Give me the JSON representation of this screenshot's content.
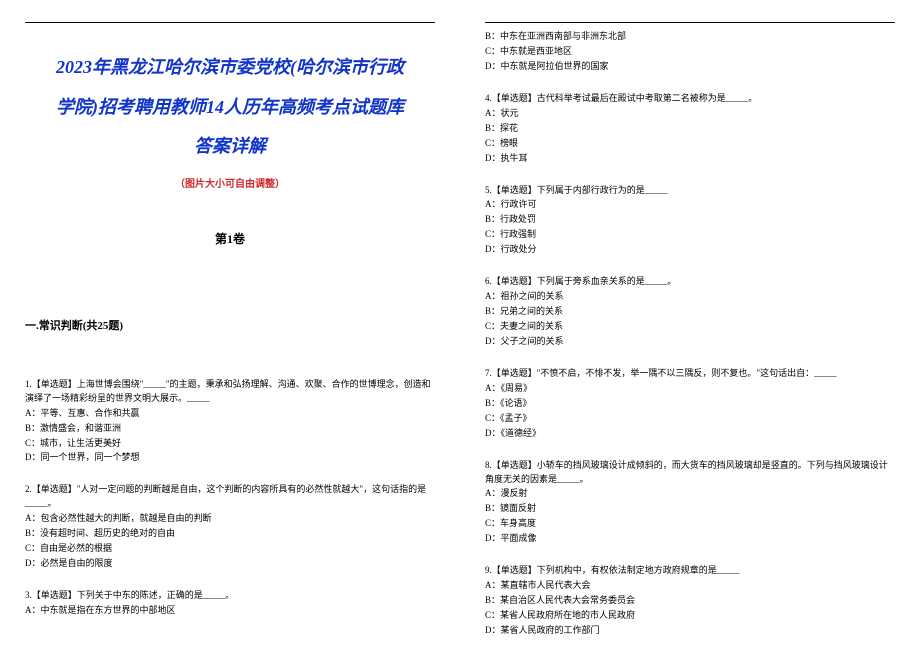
{
  "title_lines": [
    "2023年黑龙江哈尔滨市委党校(哈尔滨市行政",
    "学院)招考聘用教师14人历年高频考点试题库",
    "答案详解"
  ],
  "subnote": "（图片大小可自由调整）",
  "volume": "第1卷",
  "section_heading": "一.常识判断(共25题)",
  "colors": {
    "title": "#1135c9",
    "subnote": "#d02a2a",
    "text": "#000000",
    "background": "#ffffff"
  },
  "left_questions": [
    {
      "stem": "1.【单选题】上海世博会围绕\"_____\"的主题，秉承和弘扬理解、沟通、欢聚、合作的世博理念，创造和演绎了一场精彩纷呈的世界文明大展示。_____",
      "opts": [
        "A：平等、互惠、合作和共赢",
        "B：激情盛会，和谐亚洲",
        "C：城市，让生活更美好",
        "D：同一个世界，同一个梦想"
      ]
    },
    {
      "stem": "2.【单选题】\"人对一定问题的判断越是自由，这个判断的内容所具有的必然性就越大\"，这句话指的是_____。",
      "opts": [
        "A：包含必然性越大的判断，就越是自由的判断",
        "B：没有超时间、超历史的绝对的自由",
        "C：自由是必然的根据",
        "D：必然是自由的限度"
      ]
    },
    {
      "stem": "3.【单选题】下列关于中东的陈述，正确的是_____。",
      "opts": [
        "A：中东就是指在东方世界的中部地区"
      ]
    }
  ],
  "right_head_opts": [
    "B：中东在亚洲西南部与非洲东北部",
    "C：中东就是西亚地区",
    "D：中东就是阿拉伯世界的国家"
  ],
  "right_questions": [
    {
      "stem": "4.【单选题】古代科举考试最后在殿试中考取第二名被称为是_____。",
      "opts": [
        "A：状元",
        "B：探花",
        "C：榜眼",
        "D：执牛耳"
      ]
    },
    {
      "stem": "5.【单选题】下列属于内部行政行为的是_____",
      "opts": [
        "A：行政许可",
        "B：行政处罚",
        "C：行政强制",
        "D：行政处分"
      ]
    },
    {
      "stem": "6.【单选题】下列属于旁系血亲关系的是_____。",
      "opts": [
        "A：祖孙之间的关系",
        "B：兄弟之间的关系",
        "C：夫妻之间的关系",
        "D：父子之间的关系"
      ]
    },
    {
      "stem": "7.【单选题】\"不愤不启，不悱不发，举一隅不以三隅反，则不复也。\"这句话出自：_____",
      "opts": [
        "A：《周易》",
        "B：《论语》",
        "C：《孟子》",
        "D：《道德经》"
      ]
    },
    {
      "stem": "8.【单选题】小轿车的挡风玻璃设计成倾斜的，而大货车的挡风玻璃却是竖直的。下列与挡风玻璃设计角度无关的因素是_____。",
      "opts": [
        "A：漫反射",
        "B：镜面反射",
        "C：车身高度",
        "D：平面成像"
      ]
    },
    {
      "stem": "9.【单选题】下列机构中，有权依法制定地方政府规章的是_____",
      "opts": [
        "A：某直辖市人民代表大会",
        "B：某自治区人民代表大会常务委员会",
        "C：某省人民政府所在地的市人民政府",
        "D：某省人民政府的工作部门"
      ]
    }
  ]
}
